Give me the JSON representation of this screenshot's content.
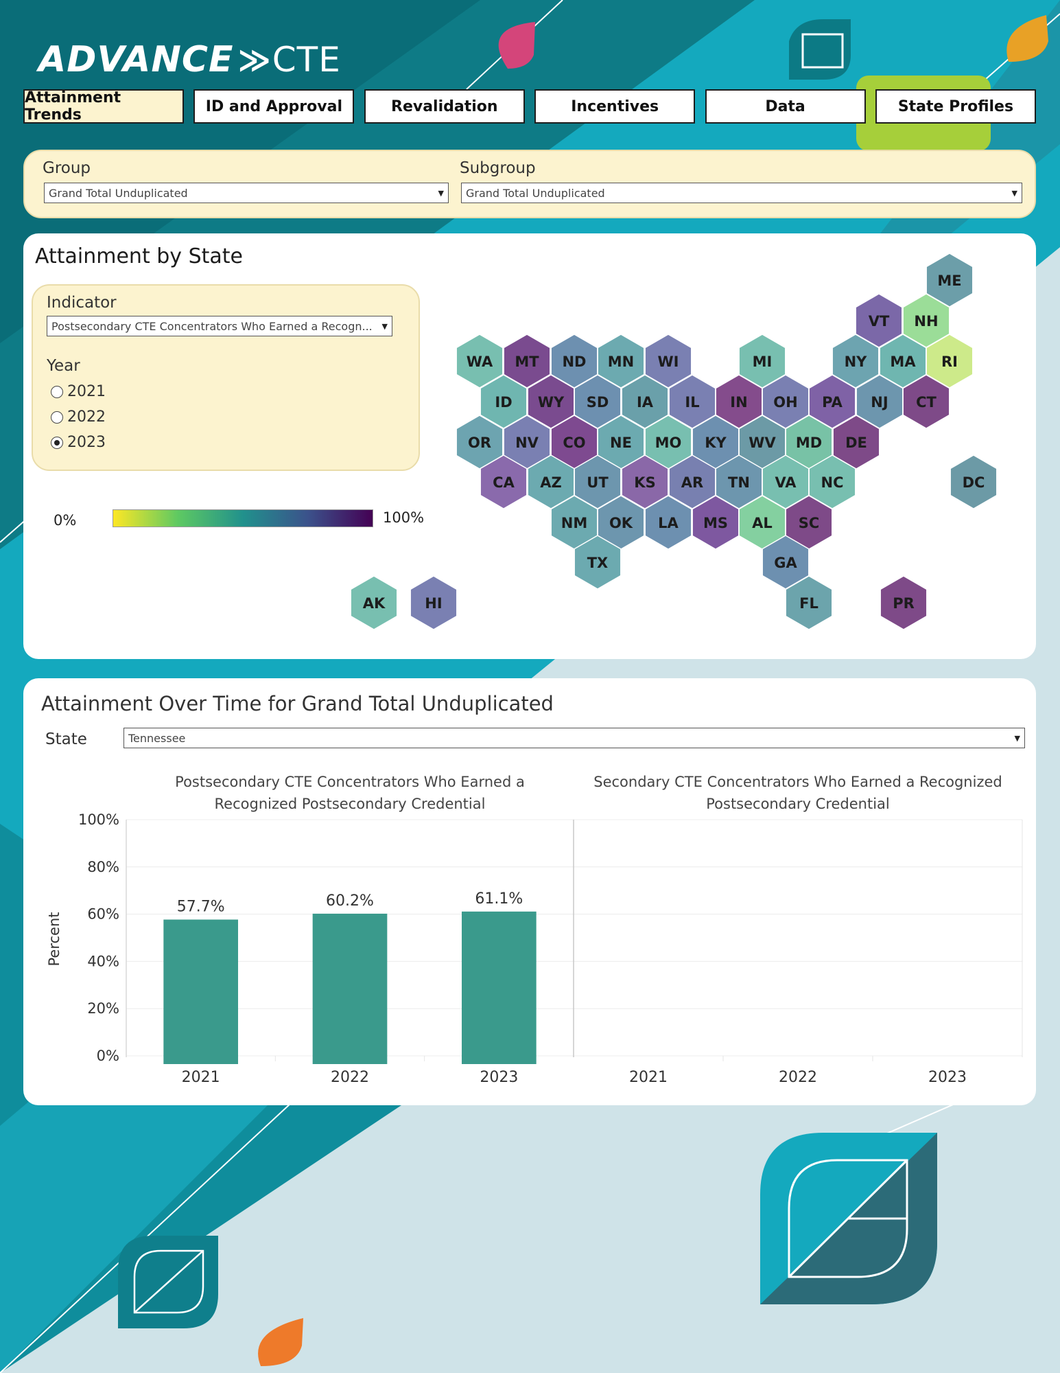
{
  "brand": {
    "name": "ADVANCE",
    "chevrons": "≫",
    "suffix": "CTE"
  },
  "nav": {
    "tabs": [
      {
        "label": "Attainment Trends",
        "active": true
      },
      {
        "label": "ID and Approval",
        "active": false
      },
      {
        "label": "Revalidation",
        "active": false
      },
      {
        "label": "Incentives",
        "active": false
      },
      {
        "label": "Data",
        "active": false
      },
      {
        "label": "State Profiles",
        "active": false
      }
    ]
  },
  "filters": {
    "group": {
      "label": "Group",
      "value": "Grand Total Unduplicated"
    },
    "subgroup": {
      "label": "Subgroup",
      "value": "Grand Total Unduplicated"
    }
  },
  "map_panel": {
    "title": "Attainment by State",
    "indicator": {
      "label": "Indicator",
      "value": "Postsecondary CTE Concentrators Who Earned a Recogn..."
    },
    "year": {
      "label": "Year",
      "options": [
        {
          "label": "2021",
          "selected": false
        },
        {
          "label": "2022",
          "selected": false
        },
        {
          "label": "2023",
          "selected": true
        }
      ]
    },
    "legend": {
      "min_label": "0%",
      "max_label": "100%",
      "colors": [
        "#fde725",
        "#5ec962",
        "#21918c",
        "#3b528b",
        "#440154"
      ]
    },
    "states": [
      {
        "abbr": "ME",
        "color": "#6c9ea9"
      },
      {
        "abbr": "VT",
        "color": "#7b68a8"
      },
      {
        "abbr": "NH",
        "color": "#9bdd98"
      },
      {
        "abbr": "WA",
        "color": "#78bfb0"
      },
      {
        "abbr": "MT",
        "color": "#7a4b8f"
      },
      {
        "abbr": "ND",
        "color": "#6d90b0"
      },
      {
        "abbr": "MN",
        "color": "#6caab0"
      },
      {
        "abbr": "WI",
        "color": "#7a80b2"
      },
      {
        "abbr": "MI",
        "color": "#78bfb0"
      },
      {
        "abbr": "NY",
        "color": "#6da4b0"
      },
      {
        "abbr": "MA",
        "color": "#6fb6b0"
      },
      {
        "abbr": "RI",
        "color": "#cdea8a"
      },
      {
        "abbr": "ID",
        "color": "#6fb6b0"
      },
      {
        "abbr": "WY",
        "color": "#7a4b8f"
      },
      {
        "abbr": "SD",
        "color": "#6d90b0"
      },
      {
        "abbr": "IA",
        "color": "#6aa0aa"
      },
      {
        "abbr": "IL",
        "color": "#7a80b2"
      },
      {
        "abbr": "IN",
        "color": "#844c8c"
      },
      {
        "abbr": "OH",
        "color": "#7a80b2"
      },
      {
        "abbr": "PA",
        "color": "#7f62a6"
      },
      {
        "abbr": "NJ",
        "color": "#6d96ae"
      },
      {
        "abbr": "CT",
        "color": "#7e4a88"
      },
      {
        "abbr": "OR",
        "color": "#6da4b0"
      },
      {
        "abbr": "NV",
        "color": "#7a80b2"
      },
      {
        "abbr": "CO",
        "color": "#7e4a90"
      },
      {
        "abbr": "NE",
        "color": "#6caab0"
      },
      {
        "abbr": "MO",
        "color": "#78bfb0"
      },
      {
        "abbr": "KY",
        "color": "#6d90b0"
      },
      {
        "abbr": "WV",
        "color": "#6c9aa6"
      },
      {
        "abbr": "MD",
        "color": "#78c2a6"
      },
      {
        "abbr": "DE",
        "color": "#7e4a88"
      },
      {
        "abbr": "CA",
        "color": "#8a6aac"
      },
      {
        "abbr": "AZ",
        "color": "#6caab0"
      },
      {
        "abbr": "UT",
        "color": "#6d96ae"
      },
      {
        "abbr": "KS",
        "color": "#8a68a8"
      },
      {
        "abbr": "AR",
        "color": "#7880b0"
      },
      {
        "abbr": "TN",
        "color": "#6d96ae"
      },
      {
        "abbr": "VA",
        "color": "#78bfb0"
      },
      {
        "abbr": "NC",
        "color": "#78bfb0"
      },
      {
        "abbr": "DC",
        "color": "#6c9aa6"
      },
      {
        "abbr": "NM",
        "color": "#6caab0"
      },
      {
        "abbr": "OK",
        "color": "#6d96ae"
      },
      {
        "abbr": "LA",
        "color": "#6d90b0"
      },
      {
        "abbr": "MS",
        "color": "#7e58a0"
      },
      {
        "abbr": "AL",
        "color": "#84d0a0"
      },
      {
        "abbr": "SC",
        "color": "#7e4a88"
      },
      {
        "abbr": "TX",
        "color": "#6caab0"
      },
      {
        "abbr": "GA",
        "color": "#6d90b0"
      },
      {
        "abbr": "AK",
        "color": "#78bfb0"
      },
      {
        "abbr": "HI",
        "color": "#7a80b2"
      },
      {
        "abbr": "FL",
        "color": "#6ca4ac"
      },
      {
        "abbr": "PR",
        "color": "#7e4a88"
      }
    ]
  },
  "chart_panel": {
    "title": "Attainment Over Time for Grand Total Unduplicated",
    "state": {
      "label": "State",
      "value": "Tennessee"
    }
  },
  "chart_data": {
    "type": "bar",
    "ylabel": "Percent",
    "ylim": [
      0,
      100
    ],
    "yticks": [
      "0%",
      "20%",
      "40%",
      "60%",
      "80%",
      "100%"
    ],
    "bar_color": "#3a9a8c",
    "panels": [
      {
        "title_lines": [
          "Postsecondary CTE Concentrators Who Earned a",
          "Recognized Postsecondary Credential"
        ],
        "categories": [
          "2021",
          "2022",
          "2023"
        ],
        "values": [
          57.7,
          60.2,
          61.1
        ],
        "labels": [
          "57.7%",
          "60.2%",
          "61.1%"
        ]
      },
      {
        "title_lines": [
          "Secondary CTE Concentrators Who Earned a Recognized",
          "Postsecondary Credential"
        ],
        "categories": [
          "2021",
          "2022",
          "2023"
        ],
        "values": [],
        "labels": []
      }
    ]
  }
}
